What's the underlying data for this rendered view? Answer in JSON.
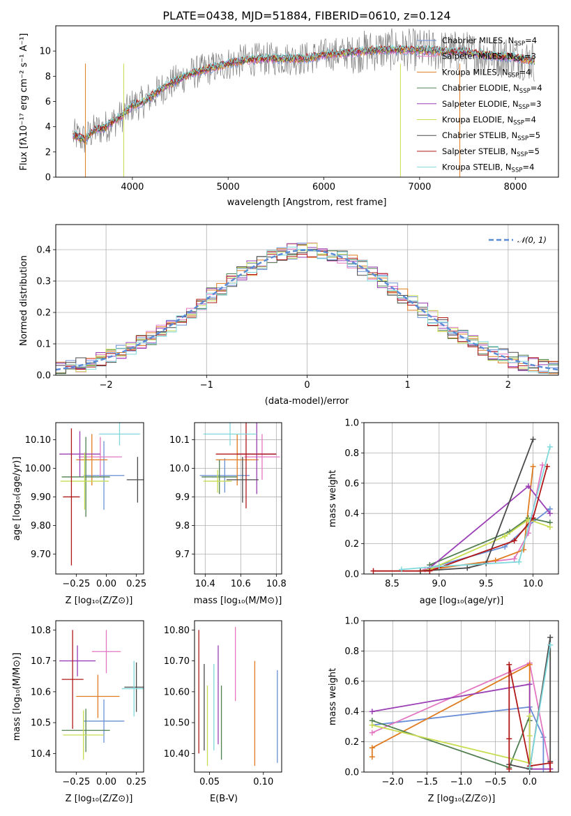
{
  "chart_data": [
    {
      "id": "spectrum",
      "type": "line",
      "title": "PLATE=0438, MJD=51884, FIBERID=0610, z=0.124",
      "xlabel": "wavelength [Angstrom, rest frame]",
      "ylabel": "Flux [fλ10⁻¹⁷ erg cm⁻² s⁻¹ A⁻¹]",
      "xlim": [
        3200,
        8450
      ],
      "ylim": [
        0,
        12
      ],
      "xticks": [
        4000,
        5000,
        6000,
        7000,
        8000
      ],
      "yticks": [
        0,
        2,
        4,
        6,
        8,
        10
      ],
      "grid": false,
      "legend_position": "top-right",
      "data_curve": {
        "x": [
          3400,
          3500,
          3600,
          3700,
          3800,
          3900,
          4000,
          4100,
          4200,
          4300,
          4400,
          4600,
          4800,
          5000,
          5200,
          5500,
          5800,
          6000,
          6300,
          6600,
          6900,
          7200,
          7500,
          7800,
          8000,
          8200
        ],
        "y": [
          3.3,
          3.0,
          3.7,
          3.9,
          4.4,
          4.9,
          5.7,
          5.9,
          6.4,
          7.0,
          7.4,
          8.2,
          8.6,
          9.0,
          9.3,
          9.4,
          9.4,
          9.7,
          9.9,
          10.1,
          10.1,
          10.0,
          9.9,
          9.6,
          9.5,
          9.2
        ]
      },
      "series": [
        {
          "name": "Chabrier MILES, N",
          "sub": "SSP",
          "suffix": "=4",
          "color": "#6a8fd6"
        },
        {
          "name": "Salpeter MILES, N",
          "sub": "SSP",
          "suffix": "=3",
          "color": "#e377c2"
        },
        {
          "name": "Kroupa MILES, N",
          "sub": "SSP",
          "suffix": "=4",
          "color": "#e07b20"
        },
        {
          "name": "Chabrier ELODIE, N",
          "sub": "SSP",
          "suffix": "=4",
          "color": "#4f7f4f"
        },
        {
          "name": "Salpeter ELODIE, N",
          "sub": "SSP",
          "suffix": "=3",
          "color": "#9a3fb5"
        },
        {
          "name": "Kroupa ELODIE, N",
          "sub": "SSP",
          "suffix": "=4",
          "color": "#c8dc50"
        },
        {
          "name": "Chabrier STELIB, N",
          "sub": "SSP",
          "suffix": "=5",
          "color": "#4a4a4a"
        },
        {
          "name": "Salpeter STELIB, N",
          "sub": "SSP",
          "suffix": "=5",
          "color": "#b01818"
        },
        {
          "name": "Kroupa STELIB, N",
          "sub": "SSP",
          "suffix": "=4",
          "color": "#7fd8dc"
        }
      ]
    },
    {
      "id": "residuals",
      "type": "line",
      "xlabel": "(data-model)/error",
      "ylabel": "Normed distribution",
      "xlim": [
        -2.5,
        2.5
      ],
      "ylim": [
        0,
        0.48
      ],
      "xticks": [
        -2,
        -1,
        0,
        1,
        2
      ],
      "yticks": [
        0.0,
        0.1,
        0.2,
        0.3,
        0.4
      ],
      "grid": true,
      "reference_curve": {
        "name": "𝒩(0, 1)",
        "mean": 0,
        "sigma": 1,
        "style": "dashed",
        "color": "#5b8bd6"
      },
      "legend_position": "top-right"
    },
    {
      "id": "age_vs_Z",
      "type": "scatter",
      "xlabel": "Z [log₁₀(Z/Z⊙)]",
      "ylabel": "age  [log₁₀(age/yr)]",
      "xlim": [
        -0.42,
        0.31
      ],
      "ylim": [
        9.63,
        10.16
      ],
      "xticks": [
        -0.25,
        0.0,
        0.25
      ],
      "yticks": [
        9.7,
        9.8,
        9.9,
        10.0,
        10.1
      ],
      "grid": false,
      "points": [
        {
          "x": -0.02,
          "y": 9.975,
          "xerr": 0.17,
          "yerr": 0.12
        },
        {
          "x": -0.05,
          "y": 10.04,
          "xerr": 0.18,
          "yerr": 0.07
        },
        {
          "x": -0.12,
          "y": 10.03,
          "xerr": 0.13,
          "yerr": 0.09
        },
        {
          "x": -0.17,
          "y": 9.97,
          "xerr": 0.2,
          "yerr": 0.14
        },
        {
          "x": -0.22,
          "y": 10.05,
          "xerr": 0.17,
          "yerr": 0.08
        },
        {
          "x": -0.18,
          "y": 9.955,
          "xerr": 0.2,
          "yerr": 0.1
        },
        {
          "x": 0.26,
          "y": 9.96,
          "xerr": 0.09,
          "yerr": 0.08
        },
        {
          "x": -0.29,
          "y": 9.9,
          "xerr": 0.07,
          "yerr": 0.24
        },
        {
          "x": 0.11,
          "y": 10.12,
          "xerr": 0.17,
          "yerr": 0.04
        }
      ]
    },
    {
      "id": "age_vs_mass",
      "type": "scatter",
      "xlabel": "mass [log₁₀(M/M⊙)]",
      "ylabel": "",
      "xlim": [
        10.34,
        10.83
      ],
      "ylim": [
        9.63,
        10.16
      ],
      "xticks": [
        10.4,
        10.6,
        10.8
      ],
      "yticks": [
        9.7,
        9.8,
        9.9,
        10.0,
        10.1
      ],
      "grid": true,
      "points": [
        {
          "x": 10.51,
          "y": 9.975,
          "xerr": 0.14,
          "yerr": 0.06
        },
        {
          "x": 10.72,
          "y": 10.04,
          "xerr": 0.1,
          "yerr": 0.08
        },
        {
          "x": 10.58,
          "y": 10.03,
          "xerr": 0.12,
          "yerr": 0.09
        },
        {
          "x": 10.48,
          "y": 9.97,
          "xerr": 0.1,
          "yerr": 0.06
        },
        {
          "x": 10.69,
          "y": 10.05,
          "xerr": 0.11,
          "yerr": 0.14
        },
        {
          "x": 10.47,
          "y": 9.955,
          "xerr": 0.08,
          "yerr": 0.04
        },
        {
          "x": 10.61,
          "y": 9.96,
          "xerr": 0.09,
          "yerr": 0.08
        },
        {
          "x": 10.63,
          "y": 10.05,
          "xerr": 0.17,
          "yerr": 0.19
        },
        {
          "x": 10.54,
          "y": 10.12,
          "xerr": 0.15,
          "yerr": 0.04
        }
      ]
    },
    {
      "id": "weight_vs_age",
      "type": "line",
      "xlabel": "age  [log₁₀(age/yr)]",
      "ylabel": "mass weight",
      "xlim": [
        8.2,
        10.27
      ],
      "ylim": [
        0,
        1.0
      ],
      "xticks": [
        8.5,
        9.0,
        9.5,
        10.0
      ],
      "yticks": [
        0.0,
        0.2,
        0.4,
        0.6,
        0.8,
        1.0
      ],
      "grid": true,
      "lines": [
        {
          "x": [
            8.9,
            9.7,
            9.95,
            10.18
          ],
          "y": [
            0.04,
            0.18,
            0.32,
            0.43
          ]
        },
        {
          "x": [
            8.85,
            9.8,
            9.95,
            10.1
          ],
          "y": [
            0.03,
            0.1,
            0.27,
            0.72
          ]
        },
        {
          "x": [
            8.8,
            9.6,
            9.9,
            10.0
          ],
          "y": [
            0.02,
            0.09,
            0.16,
            0.71
          ]
        },
        {
          "x": [
            8.9,
            9.75,
            9.95,
            10.18
          ],
          "y": [
            0.06,
            0.28,
            0.37,
            0.34
          ]
        },
        {
          "x": [
            8.9,
            9.95,
            10.18
          ],
          "y": [
            0.04,
            0.58,
            0.4
          ]
        },
        {
          "x": [
            8.9,
            9.7,
            9.95,
            10.18
          ],
          "y": [
            0.03,
            0.25,
            0.36,
            0.31
          ]
        },
        {
          "x": [
            8.8,
            9.3,
            9.5,
            10.0
          ],
          "y": [
            0.02,
            0.04,
            0.07,
            0.89
          ]
        },
        {
          "x": [
            8.3,
            8.9,
            9.8,
            10.0,
            10.15
          ],
          "y": [
            0.02,
            0.02,
            0.22,
            0.37,
            0.71
          ]
        },
        {
          "x": [
            8.6,
            9.0,
            9.85,
            10.18
          ],
          "y": [
            0.03,
            0.05,
            0.08,
            0.84
          ]
        }
      ]
    },
    {
      "id": "mass_vs_Z",
      "type": "scatter",
      "xlabel": "Z [log₁₀(Z/Z⊙)]",
      "ylabel": "mass [log₁₀(M/M⊙)]",
      "xlim": [
        -0.42,
        0.31
      ],
      "ylim": [
        10.34,
        10.83
      ],
      "xticks": [
        -0.25,
        0.0,
        0.25
      ],
      "yticks": [
        10.4,
        10.5,
        10.6,
        10.7,
        10.8
      ],
      "grid": false,
      "points": [
        {
          "x": -0.02,
          "y": 10.505,
          "xerr": 0.17,
          "yerr": 0.07
        },
        {
          "x": 0.0,
          "y": 10.73,
          "xerr": 0.12,
          "yerr": 0.07
        },
        {
          "x": -0.07,
          "y": 10.585,
          "xerr": 0.18,
          "yerr": 0.07
        },
        {
          "x": -0.17,
          "y": 10.475,
          "xerr": 0.2,
          "yerr": 0.07
        },
        {
          "x": -0.24,
          "y": 10.7,
          "xerr": 0.15,
          "yerr": 0.05
        },
        {
          "x": -0.19,
          "y": 10.46,
          "xerr": 0.17,
          "yerr": 0.08
        },
        {
          "x": 0.25,
          "y": 10.615,
          "xerr": 0.1,
          "yerr": 0.08
        },
        {
          "x": -0.28,
          "y": 10.64,
          "xerr": 0.09,
          "yerr": 0.16
        },
        {
          "x": 0.23,
          "y": 10.61,
          "xerr": 0.1,
          "yerr": 0.09
        }
      ]
    },
    {
      "id": "mass_vs_EBV",
      "type": "scatter",
      "xlabel": "E(B-V)",
      "ylabel": "",
      "xlim": [
        0.036,
        0.117
      ],
      "ylim": [
        10.34,
        10.83
      ],
      "xticks": [
        0.05,
        0.1
      ],
      "yticks": [
        10.4,
        10.5,
        10.6,
        10.7,
        10.8
      ],
      "grid": false,
      "points": [
        {
          "x": 0.113,
          "y": 10.52,
          "yerr": 0.15
        },
        {
          "x": 0.074,
          "y": 10.69,
          "yerr": 0.12
        },
        {
          "x": 0.092,
          "y": 10.53,
          "yerr": 0.17
        },
        {
          "x": 0.061,
          "y": 10.5,
          "yerr": 0.12
        },
        {
          "x": 0.058,
          "y": 10.59,
          "yerr": 0.16
        },
        {
          "x": 0.048,
          "y": 10.49,
          "yerr": 0.13
        },
        {
          "x": 0.045,
          "y": 10.55,
          "yerr": 0.14
        },
        {
          "x": 0.04,
          "y": 10.6,
          "yerr": 0.2
        },
        {
          "x": 0.054,
          "y": 10.55,
          "yerr": 0.14
        }
      ]
    },
    {
      "id": "weight_vs_Z",
      "type": "line",
      "xlabel": "Z [log₁₀(Z/Z⊙)]",
      "ylabel": "mass weight",
      "xlim": [
        -2.42,
        0.42
      ],
      "ylim": [
        0,
        1.0
      ],
      "xticks": [
        -2.0,
        -1.5,
        -1.0,
        -0.5,
        0.0
      ],
      "yticks": [
        0.0,
        0.2,
        0.4,
        0.6,
        0.8,
        1.0
      ],
      "grid": true,
      "lines": [
        {
          "x": [
            -2.3,
            0.0,
            0.2,
            0.2
          ],
          "y": [
            0.31,
            0.43,
            0.23,
            0.02
          ]
        },
        {
          "x": [
            -2.3,
            0.0,
            0.3,
            0.3
          ],
          "y": [
            0.26,
            0.72,
            0.02,
            0.02
          ]
        },
        {
          "x": [
            -2.3,
            -2.3,
            0.0,
            0.0
          ],
          "y": [
            0.1,
            0.16,
            0.71,
            0.03
          ]
        },
        {
          "x": [
            -2.3,
            -0.3,
            0.0,
            0.0
          ],
          "y": [
            0.34,
            0.03,
            0.37,
            0.34
          ]
        },
        {
          "x": [
            -2.3,
            0.0,
            0.0,
            0.3,
            0.3
          ],
          "y": [
            0.4,
            0.58,
            0.02,
            0.02,
            0.02
          ]
        },
        {
          "x": [
            -2.3,
            0.0,
            0.0,
            0.0
          ],
          "y": [
            0.31,
            0.06,
            0.24,
            0.37
          ]
        },
        {
          "x": [
            -0.3,
            0.0,
            0.3,
            0.3
          ],
          "y": [
            0.05,
            0.02,
            0.89,
            0.07
          ]
        },
        {
          "x": [
            -0.3,
            -0.3,
            -0.3,
            0.0,
            0.3,
            0.3
          ],
          "y": [
            0.02,
            0.22,
            0.71,
            0.04,
            0.06,
            0.0
          ]
        },
        {
          "x": [
            0.0,
            0.3
          ],
          "y": [
            0.03,
            0.84
          ]
        }
      ]
    }
  ]
}
